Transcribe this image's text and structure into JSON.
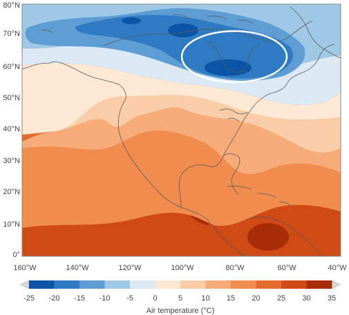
{
  "map": {
    "lat_ticks": [
      "80°N",
      "70°N",
      "60°N",
      "50°N",
      "40°N",
      "30°N",
      "20°N",
      "10°N",
      "0°"
    ],
    "lon_ticks": [
      "160°W",
      "140°W",
      "120°W",
      "100°W",
      "80°W",
      "60°W",
      "40°W"
    ],
    "highlight": "white-ellipse"
  },
  "colorbar": {
    "title": "Air temperature (°C)",
    "tick_labels": [
      "-25",
      "-20",
      "-15",
      "-10",
      "-5",
      "0",
      "5",
      "10",
      "15",
      "20",
      "25",
      "30",
      "35"
    ],
    "colors": [
      "#0b55a6",
      "#2f7bc3",
      "#5e9dd3",
      "#9ec8e6",
      "#dbe9f5",
      "#fde8d4",
      "#f9cda8",
      "#f6ab78",
      "#f08c4e",
      "#e56c2d",
      "#cf4a15",
      "#a82d06"
    ],
    "end_color": "#d8d8d8"
  },
  "colors": {
    "coast": "#5a5a5a",
    "frame": "#888888",
    "highlight": "#ffffff"
  }
}
